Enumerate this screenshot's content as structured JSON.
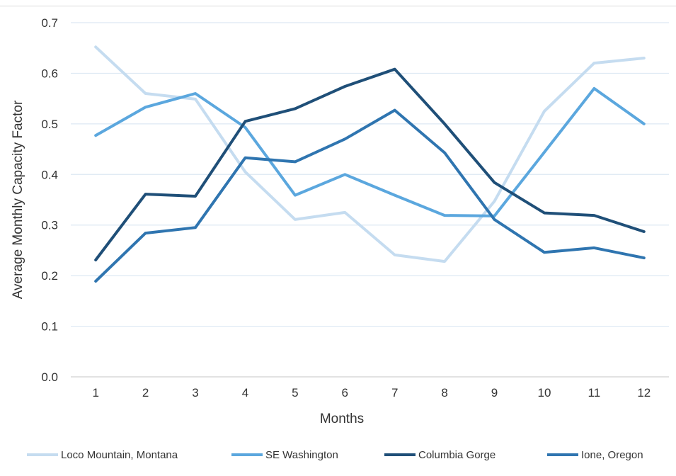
{
  "chart_data": {
    "type": "line",
    "title": "",
    "xlabel": "Months",
    "ylabel": "Average Monthly Capacity Factor",
    "categories": [
      "1",
      "2",
      "3",
      "4",
      "5",
      "6",
      "7",
      "8",
      "9",
      "10",
      "11",
      "12"
    ],
    "ylim": [
      0,
      0.7
    ],
    "yticks": [
      "0.0",
      "0.1",
      "0.2",
      "0.3",
      "0.4",
      "0.5",
      "0.6",
      "0.7"
    ],
    "grid": true,
    "legend_position": "bottom",
    "series": [
      {
        "name": "Loco Mountain, Montana",
        "color": "#c5dcf0",
        "values": [
          0.652,
          0.56,
          0.549,
          0.405,
          0.311,
          0.325,
          0.241,
          0.228,
          0.347,
          0.525,
          0.62,
          0.63
        ]
      },
      {
        "name": "SE Washington",
        "color": "#5ba7de",
        "values": [
          0.477,
          0.533,
          0.56,
          0.493,
          0.359,
          0.4,
          0.359,
          0.319,
          0.318,
          0.444,
          0.57,
          0.5
        ]
      },
      {
        "name": "Columbia Gorge",
        "color": "#1f4f78",
        "values": [
          0.231,
          0.361,
          0.357,
          0.505,
          0.53,
          0.574,
          0.608,
          0.5,
          0.384,
          0.324,
          0.319,
          0.287
        ]
      },
      {
        "name": "Ione, Oregon",
        "color": "#2f75b0",
        "values": [
          0.189,
          0.284,
          0.295,
          0.433,
          0.425,
          0.47,
          0.527,
          0.443,
          0.311,
          0.246,
          0.255,
          0.235
        ]
      }
    ]
  }
}
